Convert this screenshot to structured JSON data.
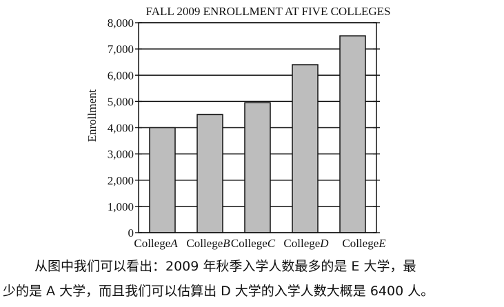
{
  "chart_data": {
    "type": "bar",
    "title": "FALL 2009 ENROLLMENT AT FIVE COLLEGES",
    "ylabel": "Enrollment",
    "xlabel": "",
    "ylim": [
      0,
      8000
    ],
    "yticks": [
      0,
      1000,
      2000,
      3000,
      4000,
      5000,
      6000,
      7000,
      8000
    ],
    "ytick_labels": [
      "0",
      "1,000",
      "2,000",
      "3,000",
      "4,000",
      "5,000",
      "6,000",
      "7,000",
      "8,000"
    ],
    "categories": [
      {
        "prefix": "College",
        "letter": "A"
      },
      {
        "prefix": "College",
        "letter": "B"
      },
      {
        "prefix": "College",
        "letter": "C"
      },
      {
        "prefix": "College",
        "letter": "D"
      },
      {
        "prefix": "College",
        "letter": "E"
      }
    ],
    "values": [
      4000,
      4500,
      4950,
      6400,
      7500
    ],
    "grid": true,
    "bar_color": "#bdbdbd"
  },
  "caption": {
    "line1": "从图中我们可以看出：2009 年秋季入学人数最多的是 E 大学，最",
    "line2": "少的是 A 大学，而且我们可以估算出 D 大学的入学人数大概是 6400 人。"
  }
}
